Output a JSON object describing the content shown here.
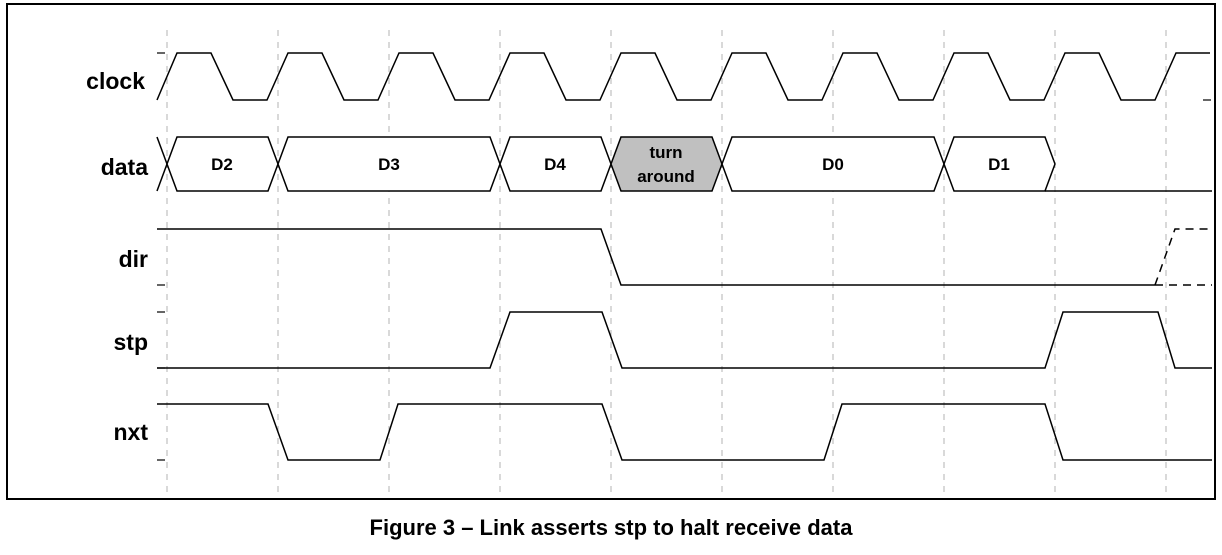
{
  "caption": "Figure 3 – Link asserts stp to halt receive data",
  "signals": {
    "clock": "clock",
    "data": "data",
    "dir": "dir",
    "stp": "stp",
    "nxt": "nxt"
  },
  "data_bus": [
    {
      "lines": [
        "D2"
      ],
      "shaded": false
    },
    {
      "lines": [
        "D3"
      ],
      "shaded": false
    },
    {
      "lines": [
        "D4"
      ],
      "shaded": false
    },
    {
      "lines": [
        "turn",
        "around"
      ],
      "shaded": true
    },
    {
      "lines": [
        "D0"
      ],
      "shaded": false
    },
    {
      "lines": [
        "D1"
      ],
      "shaded": false
    }
  ],
  "colors": {
    "line": "#000000",
    "grid": "#b3b3b3",
    "turnaround_fill": "#c0c0c0"
  }
}
